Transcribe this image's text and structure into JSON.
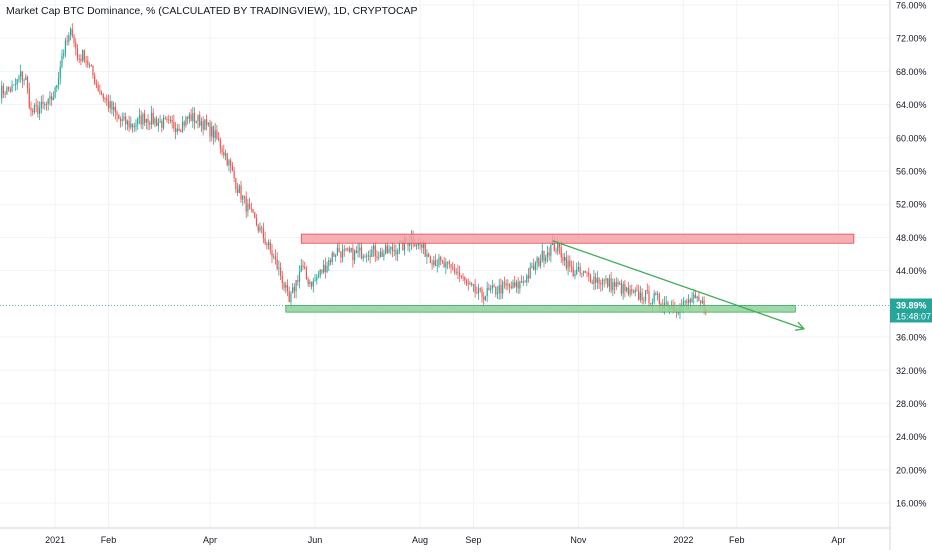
{
  "chart_data": {
    "type": "candlestick",
    "title": "Market Cap BTC Dominance, % (CALCULATED BY TRADINGVIEW), 1D, CRYPTOCAP",
    "y_unit": "%",
    "ylim": [
      13.0,
      76.6
    ],
    "y_ticks": [
      {
        "value": 76,
        "label": "76.00%"
      },
      {
        "value": 72,
        "label": "72.00%"
      },
      {
        "value": 68,
        "label": "68.00%"
      },
      {
        "value": 64,
        "label": "64.00%"
      },
      {
        "value": 60,
        "label": "60.00%"
      },
      {
        "value": 56,
        "label": "56.00%"
      },
      {
        "value": 52,
        "label": "52.00%"
      },
      {
        "value": 48,
        "label": "48.00%"
      },
      {
        "value": 44,
        "label": "44.00%"
      },
      {
        "value": 36,
        "label": "36.00%"
      },
      {
        "value": 32,
        "label": "32.00%"
      },
      {
        "value": 28,
        "label": "28.00%"
      },
      {
        "value": 24,
        "label": "24.00%"
      },
      {
        "value": 20,
        "label": "20.00%"
      },
      {
        "value": 16,
        "label": "16.00%"
      }
    ],
    "x_range": [
      "2020-11-30",
      "2022-05-01"
    ],
    "x_ticks": [
      {
        "date": "2021-01-01",
        "label": "2021"
      },
      {
        "date": "2021-02-01",
        "label": "Feb"
      },
      {
        "date": "2021-04-01",
        "label": "Apr"
      },
      {
        "date": "2021-06-01",
        "label": "Jun"
      },
      {
        "date": "2021-08-01",
        "label": "Aug"
      },
      {
        "date": "2021-09-01",
        "label": "Sep"
      },
      {
        "date": "2021-11-01",
        "label": "Nov"
      },
      {
        "date": "2022-01-01",
        "label": "2022"
      },
      {
        "date": "2022-02-01",
        "label": "Feb"
      },
      {
        "date": "2022-04-01",
        "label": "Apr"
      }
    ],
    "price_path": [
      [
        "2020-11-30",
        65.5
      ],
      [
        "2020-12-08",
        66.0
      ],
      [
        "2020-12-12",
        67.5
      ],
      [
        "2020-12-15",
        67.0
      ],
      [
        "2020-12-18",
        63.0
      ],
      [
        "2020-12-22",
        63.5
      ],
      [
        "2020-12-28",
        64.0
      ],
      [
        "2021-01-01",
        65.5
      ],
      [
        "2021-01-05",
        70.0
      ],
      [
        "2021-01-08",
        71.5
      ],
      [
        "2021-01-11",
        73.0
      ],
      [
        "2021-01-14",
        69.5
      ],
      [
        "2021-01-18",
        70.0
      ],
      [
        "2021-01-22",
        68.0
      ],
      [
        "2021-01-26",
        66.0
      ],
      [
        "2021-02-01",
        64.0
      ],
      [
        "2021-02-08",
        62.0
      ],
      [
        "2021-02-15",
        61.5
      ],
      [
        "2021-02-22",
        62.5
      ],
      [
        "2021-03-01",
        62.0
      ],
      [
        "2021-03-08",
        61.5
      ],
      [
        "2021-03-15",
        61.5
      ],
      [
        "2021-03-20",
        62.5
      ],
      [
        "2021-03-27",
        62.0
      ],
      [
        "2021-04-03",
        60.5
      ],
      [
        "2021-04-10",
        58.0
      ],
      [
        "2021-04-17",
        54.0
      ],
      [
        "2021-04-24",
        51.0
      ],
      [
        "2021-05-01",
        48.5
      ],
      [
        "2021-05-08",
        45.5
      ],
      [
        "2021-05-13",
        43.0
      ],
      [
        "2021-05-17",
        40.0
      ],
      [
        "2021-05-20",
        42.0
      ],
      [
        "2021-05-24",
        44.5
      ],
      [
        "2021-05-27",
        43.0
      ],
      [
        "2021-05-31",
        42.5
      ],
      [
        "2021-06-05",
        44.0
      ],
      [
        "2021-06-10",
        45.5
      ],
      [
        "2021-06-14",
        46.5
      ],
      [
        "2021-06-18",
        46.0
      ],
      [
        "2021-06-25",
        46.0
      ],
      [
        "2021-07-02",
        46.5
      ],
      [
        "2021-07-09",
        46.0
      ],
      [
        "2021-07-16",
        46.5
      ],
      [
        "2021-07-22",
        47.0
      ],
      [
        "2021-07-27",
        48.0
      ],
      [
        "2021-08-01",
        47.0
      ],
      [
        "2021-08-08",
        45.5
      ],
      [
        "2021-08-15",
        44.5
      ],
      [
        "2021-08-22",
        44.0
      ],
      [
        "2021-08-29",
        42.0
      ],
      [
        "2021-09-05",
        41.0
      ],
      [
        "2021-09-12",
        41.5
      ],
      [
        "2021-09-19",
        42.0
      ],
      [
        "2021-09-26",
        42.0
      ],
      [
        "2021-10-03",
        43.5
      ],
      [
        "2021-10-10",
        45.5
      ],
      [
        "2021-10-17",
        47.0
      ],
      [
        "2021-10-21",
        46.5
      ],
      [
        "2021-10-28",
        44.0
      ],
      [
        "2021-11-04",
        43.5
      ],
      [
        "2021-11-11",
        43.0
      ],
      [
        "2021-11-18",
        42.5
      ],
      [
        "2021-11-25",
        42.0
      ],
      [
        "2021-12-02",
        41.0
      ],
      [
        "2021-12-09",
        41.0
      ],
      [
        "2021-12-16",
        40.5
      ],
      [
        "2021-12-23",
        40.0
      ],
      [
        "2021-12-30",
        39.5
      ],
      [
        "2022-01-06",
        40.5
      ],
      [
        "2022-01-10",
        40.0
      ],
      [
        "2022-01-14",
        39.8
      ]
    ],
    "current_value_label": "39.89%",
    "countdown_label": "15:48:07",
    "annotations": [
      {
        "kind": "resistance-zone",
        "x0": "2021-05-24",
        "x1": "2022-04-10",
        "y0": 47.3,
        "y1": 48.4,
        "color": "#f7a1a6"
      },
      {
        "kind": "support-zone",
        "x0": "2021-05-15",
        "x1": "2022-03-07",
        "y0": 39.0,
        "y1": 39.8,
        "color": "#8fd29a"
      },
      {
        "kind": "trend-arrow",
        "x0": "2021-10-17",
        "y0": 47.6,
        "x1": "2022-03-12",
        "y1": 37.0,
        "color": "#3fae56"
      }
    ],
    "grid": true,
    "colors": {
      "up": "#26a69a",
      "down": "#ef5350",
      "badge": "#26a69a"
    }
  }
}
